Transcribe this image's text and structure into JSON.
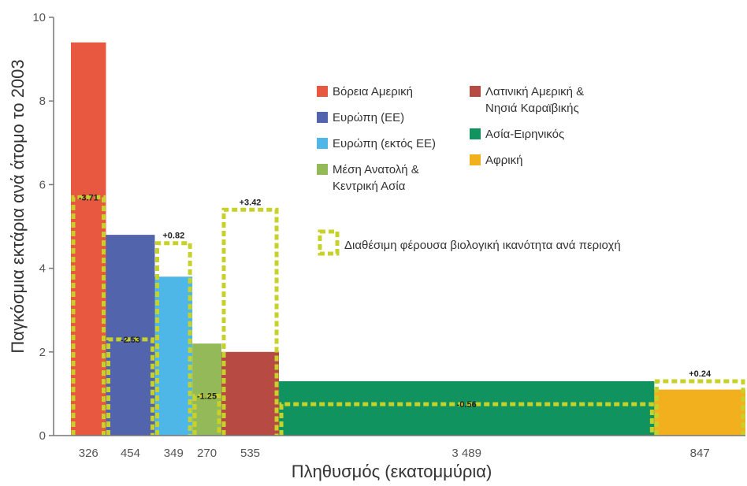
{
  "chart_data": {
    "type": "bar",
    "subtype": "variable-width",
    "xlabel": "Πληθυσμός (εκατομμύρια)",
    "ylabel": "Παγκόσμια εκτάρια ανά άτομο το 2003",
    "ylim": [
      0,
      10
    ],
    "yticks": [
      "0",
      "2",
      "4",
      "6",
      "8",
      "10"
    ],
    "grid": false,
    "legend_position": "top-right",
    "series": [
      {
        "name": "Βόρεια Αμερική",
        "population": 326,
        "population_label": "326",
        "footprint": 9.4,
        "biocapacity": 5.7,
        "diff_label": "-3.71",
        "color": "#e8573f"
      },
      {
        "name": "Ευρώπη (ΕΕ)",
        "population": 454,
        "population_label": "454",
        "footprint": 4.8,
        "biocapacity": 2.3,
        "diff_label": "-2.53",
        "color": "#5264ab"
      },
      {
        "name": "Ευρώπη (εκτός ΕΕ)",
        "population": 349,
        "population_label": "349",
        "footprint": 3.8,
        "biocapacity": 4.6,
        "diff_label": "+0.82",
        "color": "#4fb6e8"
      },
      {
        "name": "Μέση Ανατολή & Κεντρική Ασία",
        "population": 270,
        "population_label": "270",
        "footprint": 2.2,
        "biocapacity": 0.95,
        "diff_label": "-1.25",
        "color": "#93b958"
      },
      {
        "name": "Λατινική Αμερική & Νησιά Καραϊβικής",
        "population": 535,
        "population_label": "535",
        "footprint": 2.0,
        "biocapacity": 5.4,
        "diff_label": "+3.42",
        "color": "#b84a44"
      },
      {
        "name": "Ασία-Ειρηνικός",
        "population": 3489,
        "population_label": "3 489",
        "footprint": 1.3,
        "biocapacity": 0.75,
        "diff_label": "-0.56",
        "color": "#11935f"
      },
      {
        "name": "Αφρική",
        "population": 847,
        "population_label": "847",
        "footprint": 1.1,
        "biocapacity": 1.3,
        "diff_label": "+0.24",
        "color": "#f2af1e"
      }
    ],
    "legend_left": [
      [
        "Βόρεια Αμερική"
      ],
      [
        "Ευρώπη (ΕΕ)"
      ],
      [
        "Ευρώπη (εκτός ΕΕ)"
      ],
      [
        "Μέση Ανατολή &",
        "Κεντρική Ασία"
      ]
    ],
    "legend_right": [
      [
        "Λατινική Αμερική &",
        "Νησιά Καραϊβικής"
      ],
      [
        "Ασία-Ειρηνικός"
      ],
      [
        "Αφρική"
      ]
    ],
    "biocapacity_legend": "Διαθέσιμη φέρουσα βιολογική ικανότητα ανά περιοχή",
    "biocapacity_color": "#c6d22a"
  }
}
